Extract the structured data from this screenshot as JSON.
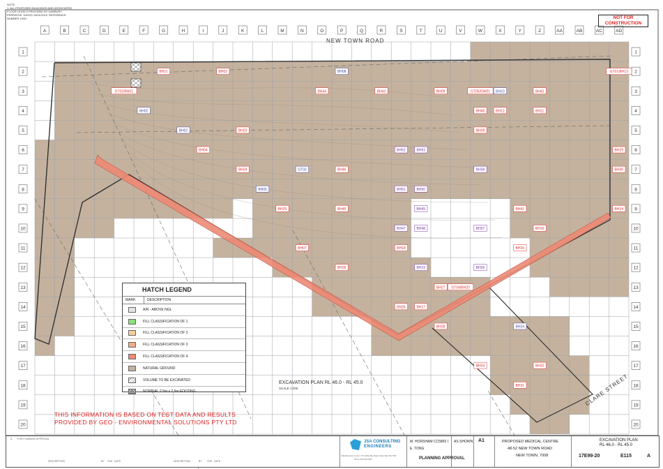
{
  "header": {
    "notes": [
      "NOTE",
      "1. ALL PROPOSED BUILDINGS AND ASSOCIATED",
      "FLOOR LEVELS PROVIDED BY DANBURY",
      "PERRATSE. DATED 19/01/2019. REFERENCE",
      "NUMBER 19/01"
    ],
    "stamp": "NOT FOR\nCONSTRUCTION"
  },
  "columns": [
    "A",
    "B",
    "C",
    "D",
    "E",
    "F",
    "G",
    "H",
    "I",
    "J",
    "K",
    "L",
    "M",
    "N",
    "O",
    "P",
    "Q",
    "R",
    "S",
    "T",
    "U",
    "V",
    "W",
    "X",
    "Y",
    "Z",
    "AA",
    "AB",
    "AC",
    "AD"
  ],
  "rows": [
    "1",
    "2",
    "3",
    "4",
    "5",
    "6",
    "7",
    "8",
    "9",
    "10",
    "11",
    "12",
    "13",
    "14",
    "15",
    "16",
    "17",
    "18",
    "19",
    "20"
  ],
  "roads": {
    "north": "NEW TOWN ROAD",
    "east": "CLARE STREET"
  },
  "colors": {
    "natural_ground": "#c4b29e",
    "fill_4": "#ee8a76",
    "bh_red": "#e03030",
    "bh_purple": "#7a3aa8",
    "bh_blue": "#4a4aa0",
    "grid": "#9aa0a8"
  },
  "boreholes_red": [
    {
      "id": "BH21",
      "col": "G",
      "row": "2"
    },
    {
      "id": "BH03",
      "col": "J",
      "row": "2"
    },
    {
      "id": "BH44",
      "col": "O",
      "row": "3"
    },
    {
      "id": "BH43",
      "col": "R",
      "row": "3"
    },
    {
      "id": "BH09",
      "col": "U",
      "row": "3"
    },
    {
      "id": "GT05/GW01",
      "col": "W",
      "row": "3"
    },
    {
      "id": "BH42",
      "col": "Z",
      "row": "3"
    },
    {
      "id": "GT01/BH13",
      "col": "AD",
      "row": "2"
    },
    {
      "id": "GT02/BH01",
      "col": "E",
      "row": "3"
    },
    {
      "id": "BH40",
      "col": "W",
      "row": "4"
    },
    {
      "id": "BH12",
      "col": "X",
      "row": "4"
    },
    {
      "id": "BH11",
      "col": "Z",
      "row": "4"
    },
    {
      "id": "BH23",
      "col": "K",
      "row": "5"
    },
    {
      "id": "BH39",
      "col": "W",
      "row": "5"
    },
    {
      "id": "BH29",
      "col": "AD",
      "row": "6"
    },
    {
      "id": "BH04",
      "col": "I",
      "row": "6"
    },
    {
      "id": "BH24",
      "col": "K",
      "row": "7"
    },
    {
      "id": "BH46",
      "col": "P",
      "row": "7"
    },
    {
      "id": "BH30",
      "col": "AD",
      "row": "7"
    },
    {
      "id": "BH25",
      "col": "M",
      "row": "9"
    },
    {
      "id": "BH45",
      "col": "P",
      "row": "9"
    },
    {
      "id": "BH41",
      "col": "Y",
      "row": "9"
    },
    {
      "id": "BH14",
      "col": "AD",
      "row": "9"
    },
    {
      "id": "BH15",
      "col": "Z",
      "row": "10"
    },
    {
      "id": "BH06",
      "col": "N",
      "row": "11"
    },
    {
      "id": "BH07",
      "col": "N",
      "row": "11"
    },
    {
      "id": "BH18",
      "col": "S",
      "row": "11"
    },
    {
      "id": "BH16",
      "col": "Y",
      "row": "11"
    },
    {
      "id": "BH35",
      "col": "P",
      "row": "12"
    },
    {
      "id": "BH27",
      "col": "U",
      "row": "13"
    },
    {
      "id": "GT04/BH20",
      "col": "V",
      "row": "13"
    },
    {
      "id": "BH26",
      "col": "S",
      "row": "14"
    },
    {
      "id": "BH17",
      "col": "T",
      "row": "14"
    },
    {
      "id": "BH28",
      "col": "U",
      "row": "15"
    },
    {
      "id": "BH33",
      "col": "W",
      "row": "17"
    },
    {
      "id": "BH32",
      "col": "Z",
      "row": "17"
    },
    {
      "id": "BH31",
      "col": "Y",
      "row": "18"
    }
  ],
  "boreholes_purple": [
    {
      "id": "BH52",
      "col": "S",
      "row": "6"
    },
    {
      "id": "BH53",
      "col": "T",
      "row": "6"
    },
    {
      "id": "BH38",
      "col": "W",
      "row": "7"
    },
    {
      "id": "BH51",
      "col": "S",
      "row": "8"
    },
    {
      "id": "BH50",
      "col": "T",
      "row": "8"
    },
    {
      "id": "BH49",
      "col": "T",
      "row": "9"
    },
    {
      "id": "BH37",
      "col": "W",
      "row": "10"
    },
    {
      "id": "BH47",
      "col": "S",
      "row": "10"
    },
    {
      "id": "BH48",
      "col": "T",
      "row": "10"
    },
    {
      "id": "BH19",
      "col": "T",
      "row": "12"
    },
    {
      "id": "BH36",
      "col": "W",
      "row": "12"
    }
  ],
  "boreholes_blue": [
    {
      "id": "BH08",
      "col": "P",
      "row": "2"
    },
    {
      "id": "BH10",
      "col": "X",
      "row": "3"
    },
    {
      "id": "BH02",
      "col": "F",
      "row": "4"
    },
    {
      "id": "BH02",
      "col": "H",
      "row": "5"
    },
    {
      "id": "GT03",
      "col": "N",
      "row": "7"
    },
    {
      "id": "BH05",
      "col": "L",
      "row": "8"
    },
    {
      "id": "BH34",
      "col": "Y",
      "row": "15"
    }
  ],
  "legend": {
    "title": "HATCH LEGEND",
    "col_mark": "MARK",
    "col_desc": "DESCRIPTION",
    "items": [
      {
        "label": "A/R - ABOVE NGL",
        "color": "#e6e6e6"
      },
      {
        "label": "FILL CLASSIFICATION OF 1",
        "color": "#8ee07a"
      },
      {
        "label": "FILL CLASSIFICATION OF 2",
        "color": "#f8cd9c"
      },
      {
        "label": "FILL CLASSIFICATION OF 3",
        "color": "#f4ab84"
      },
      {
        "label": "FILL CLASSIFICATION OF 4",
        "color": "#ee8a76"
      },
      {
        "label": "NATURAL GROUND",
        "color": "#c4b29e"
      },
      {
        "label": "VOLUME TO BE EXCAVATED",
        "color": "hatch"
      },
      {
        "label": "NOMINAL 2.5m x 2.5m FOOTING",
        "color": "cross"
      }
    ]
  },
  "plan": {
    "title": "EXCAVATION PLAN RL 46.0 - RL 45.0",
    "scale": "SCALE 1:200"
  },
  "disclaimer": [
    "THIS INFORMATION IS BASED ON TEST DATA AND RESULTS",
    "PROVIDED BY GEO - ENVIRONMENTAL SOLUTIONS PTY LTD"
  ],
  "title_block": {
    "revision_label": "A",
    "revision_desc": "FOR PLANNING APPROVAL",
    "rev_headers": [
      "DESCRIPTION",
      "BY",
      "CHK",
      "DATE"
    ],
    "firm": "JSA CONSULTING",
    "firm_sub": "ENGINEERS",
    "firm_addr": "Banalle House, Level 1, 75 Crabby Bay Road, Sandy Bay TAS 7005",
    "firm_phone": "Phone (03) 6224 9022",
    "designer": "M. HORSHAM CC5865 I",
    "drawn": "E. TONG",
    "scale": "AS SHOWN",
    "size": "A1",
    "status": "PLANNING APPROVAL",
    "project_name": "PROPOSED MEDICAL CENTRE",
    "project_addr1": "48-52 NEW TOWN ROAD",
    "project_addr2": "NEW TOWN, 7008",
    "drawing_title1": "EXCAVATION PLAN",
    "drawing_title2": "RL 46.0 - RL 45.0",
    "project_no": "17E99-20",
    "drawing_no": "E115",
    "rev": "A"
  }
}
